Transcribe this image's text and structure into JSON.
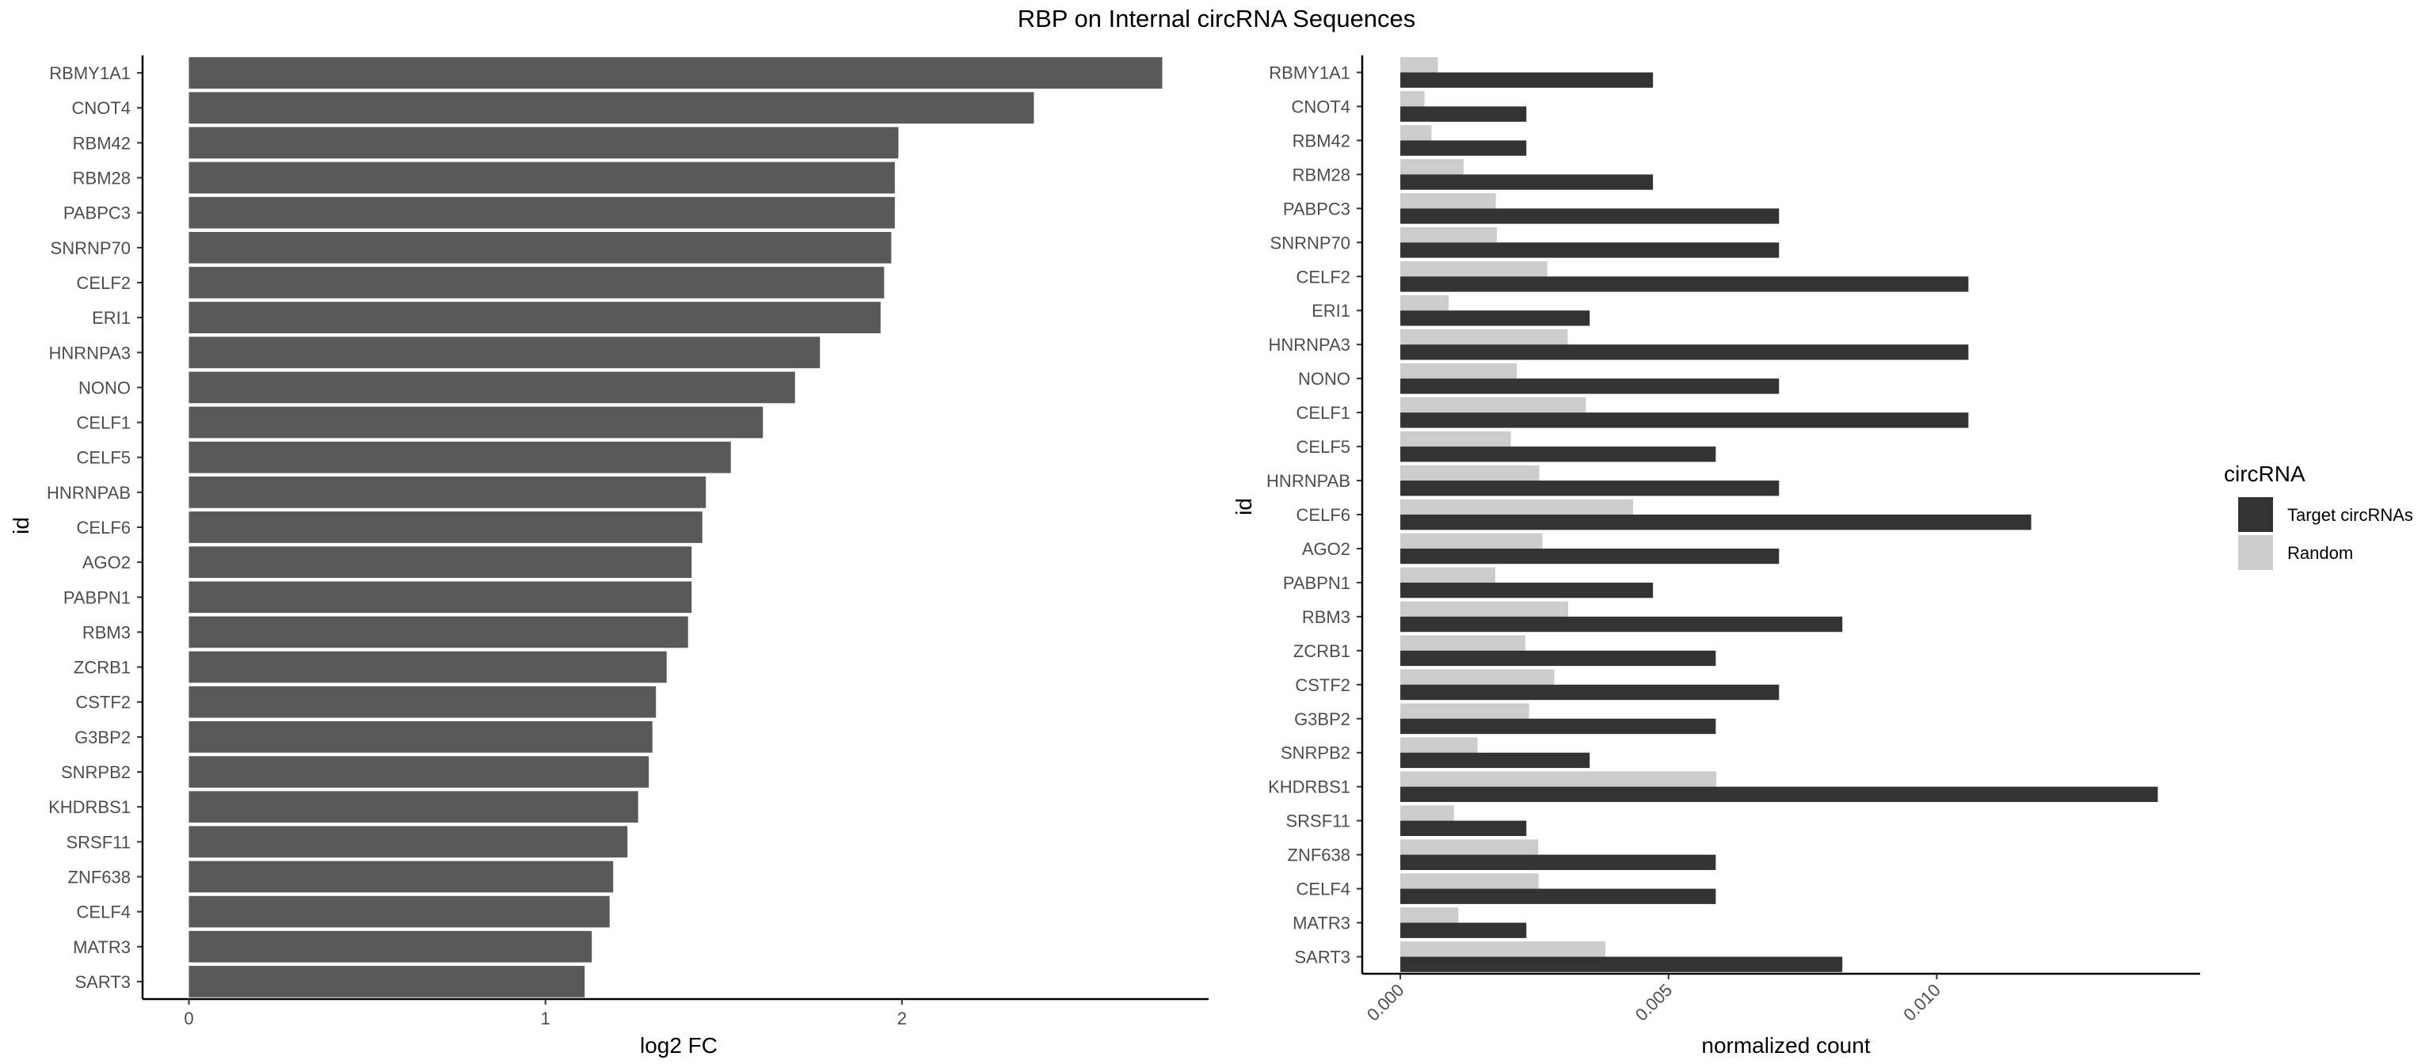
{
  "title": "RBP on Internal circRNA Sequences",
  "chart_data": [
    {
      "type": "bar",
      "orientation": "horizontal",
      "xlabel": "log2 FC",
      "ylabel": "id",
      "xlim": [
        -0.13,
        2.86
      ],
      "x_ticks": [
        "0",
        "1",
        "2"
      ],
      "categories": [
        "RBMY1A1",
        "CNOT4",
        "RBM42",
        "RBM28",
        "PABPC3",
        "SNRNP70",
        "CELF2",
        "ERI1",
        "HNRNPA3",
        "NONO",
        "CELF1",
        "CELF5",
        "HNRNPAB",
        "CELF6",
        "AGO2",
        "PABPN1",
        "RBM3",
        "ZCRB1",
        "CSTF2",
        "G3BP2",
        "SNRPB2",
        "KHDRBS1",
        "SRSF11",
        "ZNF638",
        "CELF4",
        "MATR3",
        "SART3"
      ],
      "values": [
        2.73,
        2.37,
        1.99,
        1.98,
        1.98,
        1.97,
        1.95,
        1.94,
        1.77,
        1.7,
        1.61,
        1.52,
        1.45,
        1.44,
        1.41,
        1.41,
        1.4,
        1.34,
        1.31,
        1.3,
        1.29,
        1.26,
        1.23,
        1.19,
        1.18,
        1.13,
        1.11
      ],
      "bar_color": "#595959",
      "grid": false
    },
    {
      "type": "bar",
      "orientation": "horizontal",
      "xlabel": "normalized count",
      "ylabel": "id",
      "xlim": [
        -0.00071,
        0.01491
      ],
      "x_ticks": [
        "0.000",
        "0.005",
        "0.010"
      ],
      "categories": [
        "RBMY1A1",
        "CNOT4",
        "RBM42",
        "RBM28",
        "PABPC3",
        "SNRNP70",
        "CELF2",
        "ERI1",
        "HNRNPA3",
        "NONO",
        "CELF1",
        "CELF5",
        "HNRNPAB",
        "CELF6",
        "AGO2",
        "PABPN1",
        "RBM3",
        "ZCRB1",
        "CSTF2",
        "G3BP2",
        "SNRPB2",
        "KHDRBS1",
        "SRSF11",
        "ZNF638",
        "CELF4",
        "MATR3",
        "SART3"
      ],
      "series": [
        {
          "name": "Target circRNAs",
          "color": "#333333",
          "values": [
            0.00471,
            0.00235,
            0.00235,
            0.00471,
            0.00706,
            0.00706,
            0.01059,
            0.00353,
            0.01059,
            0.00706,
            0.01059,
            0.00588,
            0.00706,
            0.01176,
            0.00706,
            0.00471,
            0.00824,
            0.00588,
            0.00706,
            0.00588,
            0.00353,
            0.01412,
            0.00235,
            0.00588,
            0.00588,
            0.00235,
            0.00824
          ]
        },
        {
          "name": "Random",
          "color": "#cccccc",
          "values": [
            0.0007,
            0.00045,
            0.00058,
            0.00118,
            0.00178,
            0.0018,
            0.00274,
            0.0009,
            0.00312,
            0.00217,
            0.00346,
            0.00206,
            0.00259,
            0.00434,
            0.00265,
            0.00177,
            0.00313,
            0.00233,
            0.00287,
            0.0024,
            0.00144,
            0.00589,
            0.001,
            0.00257,
            0.00258,
            0.00108,
            0.00382
          ]
        }
      ],
      "legend": {
        "title": "circRNA",
        "position": "right"
      },
      "grid": false
    }
  ]
}
